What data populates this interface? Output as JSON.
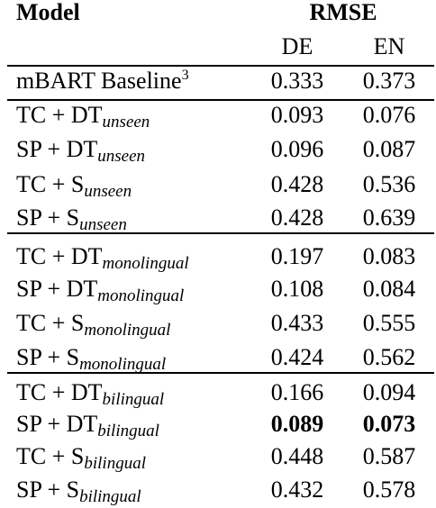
{
  "header": {
    "model": "Model",
    "metric": "RMSE",
    "columns": [
      "DE",
      "EN"
    ]
  },
  "table": {
    "rows": [
      {
        "model": "mBART Baseline",
        "superscript": "3",
        "values": [
          "0.333",
          "0.373"
        ]
      },
      {
        "model": "TC + DT",
        "subscript": "unseen",
        "values": [
          "0.093",
          "0.076"
        ]
      },
      {
        "model": "SP + DT",
        "subscript": "unseen",
        "values": [
          "0.096",
          "0.087"
        ]
      },
      {
        "model": "TC + S",
        "subscript": "unseen",
        "values": [
          "0.428",
          "0.536"
        ]
      },
      {
        "model": "SP + S",
        "subscript": "unseen",
        "values": [
          "0.428",
          "0.639"
        ]
      },
      {
        "model": "TC + DT",
        "subscript": "monolingual",
        "values": [
          "0.197",
          "0.083"
        ]
      },
      {
        "model": "SP + DT",
        "subscript": "monolingual",
        "values": [
          "0.108",
          "0.084"
        ]
      },
      {
        "model": "TC + S",
        "subscript": "monolingual",
        "values": [
          "0.433",
          "0.555"
        ]
      },
      {
        "model": "SP + S",
        "subscript": "monolingual",
        "values": [
          "0.424",
          "0.562"
        ]
      },
      {
        "model": "TC + DT",
        "subscript": "bilingual",
        "values": [
          "0.166",
          "0.094"
        ]
      },
      {
        "model": "SP + DT",
        "subscript": "bilingual",
        "values": [
          "0.089",
          "0.073"
        ]
      },
      {
        "model": "TC + S",
        "subscript": "bilingual",
        "values": [
          "0.448",
          "0.587"
        ]
      },
      {
        "model": "SP + S",
        "subscript": "bilingual",
        "values": [
          "0.432",
          "0.578"
        ]
      }
    ]
  }
}
